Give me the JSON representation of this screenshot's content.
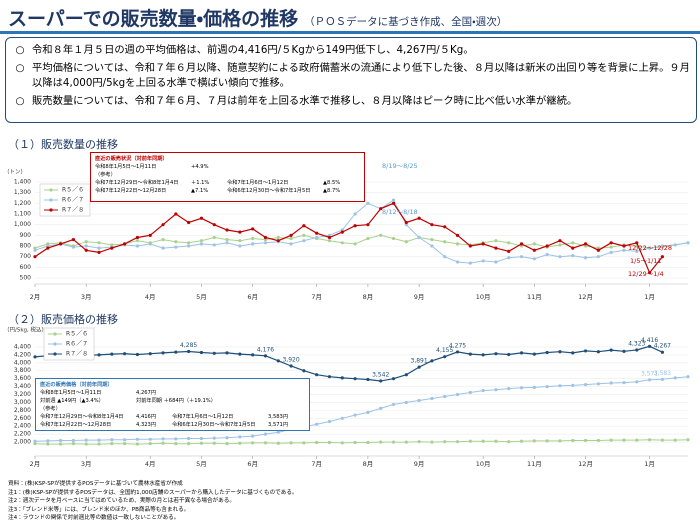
{
  "header": {
    "title": "スーパーでの販売数量・価格の推移",
    "subtitle": "（ＰＯＳデータに基づき作成、全国・週次）",
    "bullets": [
      {
        "mark": "○",
        "text": "令和８年１月５日の週の平均価格は、前週の4,416円/５Kgから149円低下し、4,267円/５Kg。"
      },
      {
        "mark": "○",
        "text": "平均価格については、令和７年６月以降、随意契約による政府備蓄米の流通により低下した後、８月以降は新米の出回り等を背景に上昇。９月以降は4,000円/5kgを上回る水準で横ばい傾向で推移。"
      },
      {
        "mark": "○",
        "text": "販売数量については、令和７年６月、７月は前年を上回る水準で推移し、８月以降はピーク時に比べ低い水準が継続。"
      }
    ]
  },
  "sections": [
    "（１）販売数量の推移",
    "（２）販売価格の推移"
  ],
  "chart_data": [
    {
      "type": "line",
      "y_unit": "（トン）",
      "categories": [
        "2月",
        null,
        null,
        null,
        "3月",
        null,
        null,
        null,
        null,
        "4月",
        null,
        null,
        null,
        "5月",
        null,
        null,
        null,
        "6月",
        null,
        null,
        null,
        null,
        "7月",
        null,
        null,
        null,
        "8月",
        null,
        null,
        null,
        "9月",
        null,
        null,
        null,
        null,
        "10月",
        null,
        null,
        null,
        "11月",
        null,
        null,
        null,
        "12月",
        null,
        null,
        null,
        null,
        "1月",
        null,
        null,
        null
      ],
      "ylim": [
        500,
        1400
      ],
      "yticks": [
        500,
        600,
        700,
        800,
        900,
        {
          "value": 1000,
          "label": "1,000"
        },
        {
          "value": 1100,
          "label": "1,100"
        },
        {
          "value": 1200,
          "label": "1,200"
        },
        {
          "value": 1300,
          "label": "1,300"
        },
        {
          "value": 1400,
          "label": "1,400"
        }
      ],
      "grid": true,
      "series": [
        {
          "name": "R５／６",
          "color": "#a9d18e",
          "values": [
            780,
            820,
            830,
            800,
            840,
            830,
            810,
            820,
            850,
            830,
            860,
            840,
            830,
            850,
            880,
            860,
            850,
            870,
            860,
            880,
            870,
            900,
            870,
            850,
            830,
            820,
            870,
            900,
            870,
            840,
            880,
            860,
            840,
            820,
            810,
            830,
            850,
            830,
            800,
            820,
            790,
            810,
            830,
            800,
            780,
            790,
            810,
            800,
            780,
            790,
            810,
            830
          ]
        },
        {
          "name": "R６／７",
          "color": "#9dc3e6",
          "values": [
            760,
            800,
            820,
            790,
            800,
            780,
            790,
            810,
            800,
            820,
            780,
            790,
            800,
            820,
            810,
            830,
            800,
            820,
            830,
            840,
            820,
            850,
            880,
            900,
            950,
            1100,
            1200,
            1150,
            1230,
            1000,
            880,
            800,
            700,
            650,
            640,
            660,
            650,
            690,
            700,
            680,
            720,
            700,
            710,
            690,
            700,
            740,
            760,
            750,
            780,
            800,
            810,
            830
          ]
        },
        {
          "name": "R７／８",
          "color": "#c00000",
          "values": [
            700,
            780,
            820,
            860,
            760,
            740,
            780,
            820,
            880,
            900,
            1000,
            1100,
            1020,
            1060,
            1000,
            950,
            930,
            960,
            880,
            850,
            900,
            990,
            920,
            880,
            930,
            990,
            1000,
            1150,
            1200,
            1020,
            1060,
            1000,
            980,
            900,
            800,
            820,
            780,
            750,
            820,
            760,
            800,
            850,
            780,
            820,
            760,
            830,
            800,
            830,
            550,
            700,
            null,
            null
          ]
        }
      ],
      "annotations": [
        "8/5～8/11",
        "8/19～8/25",
        "8/12～8/18",
        "12/22～12/28",
        "1/5～1/11",
        "12/29～1/4"
      ],
      "info_box": {
        "title": "直近の販売状況（対前年同期）",
        "rows": [
          [
            "令和8年1月5日～1月11日",
            "+4.9%"
          ],
          [
            "（参考）"
          ],
          [
            "令和7年12月29日～令和8年1月4日",
            "＋1.1%",
            "令和7年1月6日～1月12日",
            "▲8.5%"
          ],
          [
            "令和7年12月22日～12月28日",
            "▲7.1%",
            "令和6年12月30日～令和7年1月5日",
            "▲8.7%"
          ]
        ]
      }
    },
    {
      "type": "line",
      "y_unit": "（円/5kg, 税込）",
      "categories": [
        "2月",
        null,
        null,
        null,
        "3月",
        null,
        null,
        null,
        null,
        "4月",
        null,
        null,
        null,
        "5月",
        null,
        null,
        null,
        "6月",
        null,
        null,
        null,
        null,
        "7月",
        null,
        null,
        null,
        "8月",
        null,
        null,
        null,
        "9月",
        null,
        null,
        null,
        null,
        "10月",
        null,
        null,
        null,
        "11月",
        null,
        null,
        null,
        "12月",
        null,
        null,
        null,
        null,
        "1月",
        null,
        null,
        null
      ],
      "ylim": [
        1800,
        4500
      ],
      "yticks": [
        {
          "value": 2000,
          "label": "2,000"
        },
        {
          "value": 2200,
          "label": "2,200"
        },
        {
          "value": 2400,
          "label": "2,400"
        },
        {
          "value": 2600,
          "label": "2,600"
        },
        {
          "value": 2800,
          "label": "2,800"
        },
        {
          "value": 3000,
          "label": "3,000"
        },
        {
          "value": 3200,
          "label": "3,200"
        },
        {
          "value": 3400,
          "label": "3,400"
        },
        {
          "value": 3600,
          "label": "3,600"
        },
        {
          "value": 3800,
          "label": "3,800"
        },
        {
          "value": 4000,
          "label": "4,000"
        },
        {
          "value": 4200,
          "label": "4,200"
        },
        {
          "value": 4400,
          "label": "4,400"
        }
      ],
      "grid": true,
      "series": [
        {
          "name": "R５／６",
          "color": "#a9d18e",
          "values": [
            1960,
            1950,
            1950,
            1960,
            1950,
            1950,
            1960,
            1960,
            1950,
            1960,
            1970,
            1960,
            1960,
            1970,
            1970,
            1960,
            1970,
            1980,
            1980,
            1970,
            1980,
            1980,
            1990,
            1990,
            1980,
            1990,
            1990,
            2000,
            2000,
            2000,
            2010,
            2000,
            2010,
            2010,
            2020,
            2020,
            2020,
            2010,
            2020,
            2030,
            2030,
            2030,
            2040,
            2040,
            2040,
            2050,
            2050,
            2050,
            2060,
            2050,
            2050,
            2060
          ]
        },
        {
          "name": "R６／７",
          "color": "#9dc3e6",
          "values": [
            2020,
            2030,
            2040,
            2040,
            2050,
            2050,
            2060,
            2060,
            2070,
            2070,
            2080,
            2080,
            2090,
            2090,
            2100,
            2110,
            2130,
            2150,
            2200,
            2250,
            2320,
            2380,
            2450,
            2520,
            2600,
            2680,
            2750,
            2850,
            2950,
            3000,
            3050,
            3100,
            3150,
            3200,
            3250,
            3300,
            3320,
            3350,
            3370,
            3380,
            3400,
            3420,
            3430,
            3450,
            3470,
            3490,
            3500,
            3520,
            3571,
            3583,
            3620,
            3650
          ],
          "value_labels": [
            null,
            null,
            null,
            null,
            null,
            null,
            null,
            null,
            null,
            null,
            null,
            null,
            null,
            null,
            null,
            null,
            null,
            null,
            null,
            null,
            null,
            null,
            null,
            null,
            null,
            null,
            null,
            null,
            null,
            null,
            null,
            null,
            null,
            null,
            null,
            null,
            null,
            null,
            null,
            null,
            null,
            null,
            null,
            null,
            null,
            null,
            null,
            null,
            "3,571",
            "3,583",
            null,
            null
          ]
        },
        {
          "name": "R７／８",
          "color": "#1f4e79",
          "values": [
            4150,
            4180,
            4200,
            4210,
            4190,
            4200,
            4220,
            4230,
            4210,
            4230,
            4250,
            4270,
            4285,
            4260,
            4240,
            4250,
            4220,
            4200,
            4176,
            4050,
            3920,
            3800,
            3700,
            3650,
            3620,
            3600,
            3580,
            3542,
            3600,
            3700,
            3891,
            4050,
            4155,
            4275,
            4220,
            4200,
            4230,
            4210,
            4250,
            4220,
            4260,
            4280,
            4250,
            4300,
            4280,
            4320,
            4290,
            4323,
            4416,
            4267,
            null,
            null
          ],
          "value_labels": [
            null,
            null,
            null,
            null,
            null,
            null,
            null,
            null,
            null,
            null,
            null,
            null,
            "4,285",
            null,
            null,
            null,
            null,
            null,
            "4,176",
            null,
            "3,920",
            null,
            null,
            null,
            null,
            null,
            null,
            "3,542",
            null,
            null,
            "3,891",
            null,
            "4,155",
            "4,275",
            null,
            null,
            null,
            null,
            null,
            null,
            null,
            null,
            null,
            null,
            null,
            null,
            null,
            "4,323",
            "4,416",
            "4,267",
            null,
            null
          ]
        }
      ],
      "info_box": {
        "title": "直近の販売価格（対前年同期）",
        "rows": [
          [
            "令和8年1月5日～1月11日",
            "4,267円"
          ],
          [
            "対前週 ▲149円（▲3.4%）",
            "対前年同期 ＋684円（＋19.1%）"
          ],
          [
            "（参考）"
          ],
          [
            "令和7年12月29日～令和8年1月4日",
            "4,416円",
            "令和7年1月6日～1月12日",
            "3,583円"
          ],
          [
            "令和7年12月22日～12月28日",
            "4,323円",
            "令和6年12月30日～令和7年1月5日",
            "3,571円"
          ]
        ]
      }
    }
  ],
  "notes": [
    "資料：(株)KSP-SPが提供するPOSデータに基づいて農林水産省が作成",
    "注1：(株)KSP-SPが提供するPOSデータは、全国約1,000店舗のスーパーから購入したデータに基づくものである。",
    "注2：週次データを月ベースに当てはめているため、実際の月とは若干異なる場合がある。",
    "注3：「ブレンド米等」には、ブレンド米のほか、PB商品等も含まれる。",
    "注4：ラウンドの関係で対前週比等の数値は一致しないことがある。"
  ]
}
